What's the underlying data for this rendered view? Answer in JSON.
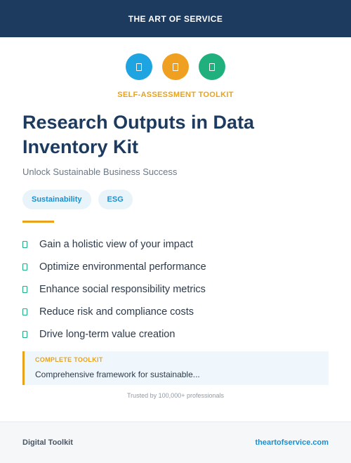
{
  "header": {
    "brand": "THE ART OF SERVICE"
  },
  "icons": [
    {
      "name": "document-icon",
      "color": "#1ea4e0"
    },
    {
      "name": "document-icon",
      "color": "#f0a020"
    },
    {
      "name": "document-icon",
      "color": "#1fb07e"
    }
  ],
  "eyebrow": "SELF-ASSESSMENT TOOLKIT",
  "title": "Research Outputs in Data Inventory Kit",
  "subtitle": "Unlock Sustainable Business Success",
  "tags": [
    "Sustainability",
    "ESG"
  ],
  "benefits": [
    "Gain a holistic view of your impact",
    "Optimize environmental performance",
    "Enhance social responsibility metrics",
    "Reduce risk and compliance costs",
    "Drive long-term value creation"
  ],
  "callout": {
    "label": "COMPLETE TOOLKIT",
    "text": "Comprehensive framework for sustainable..."
  },
  "trust": "Trusted by 100,000+ professionals",
  "footer": {
    "left": "Digital Toolkit",
    "right": "theartofservice.com"
  },
  "colors": {
    "navy": "#1d3a5f",
    "accent": "#e8a21c",
    "link": "#1a8fcf",
    "check": "#1fb07e"
  }
}
